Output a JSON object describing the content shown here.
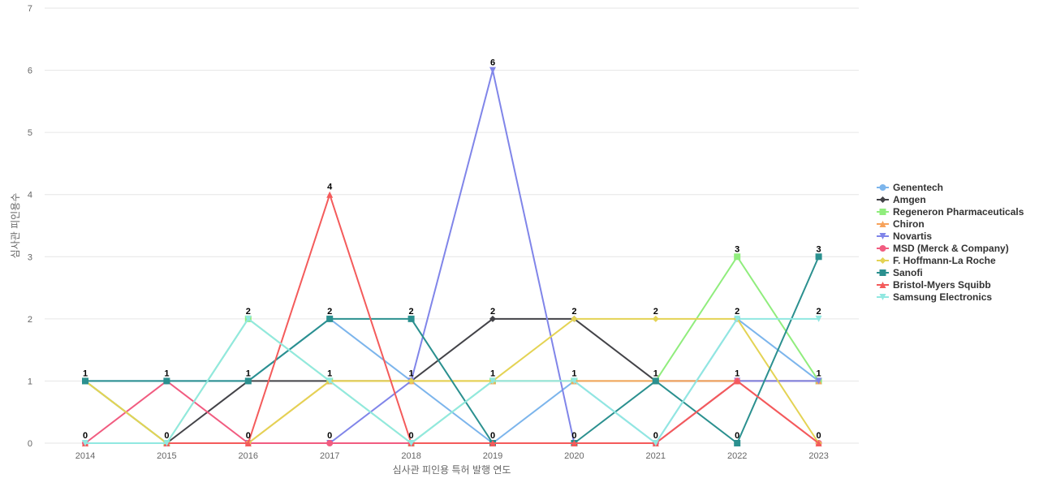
{
  "chart_data": {
    "type": "line",
    "title": "",
    "xlabel": "심사관 피인용 특허 발행 연도",
    "ylabel": "심사관 피인용수",
    "categories": [
      "2014",
      "2015",
      "2016",
      "2017",
      "2018",
      "2019",
      "2020",
      "2021",
      "2022",
      "2023"
    ],
    "y_ticks": [
      "0",
      "1",
      "2",
      "3",
      "4",
      "5",
      "6",
      "7"
    ],
    "ylim": [
      0,
      7
    ],
    "grid": true,
    "legend_position": "right",
    "series": [
      {
        "name": "Genentech",
        "color": "#7cb5ec",
        "marker": "circle",
        "values": [
          1,
          1,
          1,
          2,
          1,
          0,
          1,
          0,
          2,
          1
        ]
      },
      {
        "name": "Amgen",
        "color": "#434348",
        "marker": "diamond",
        "values": [
          1,
          0,
          1,
          1,
          1,
          2,
          2,
          1,
          1,
          1
        ]
      },
      {
        "name": "Regeneron Pharmaceuticals",
        "color": "#90ed7d",
        "marker": "square",
        "values": [
          1,
          0,
          2,
          1,
          0,
          1,
          1,
          1,
          3,
          1
        ]
      },
      {
        "name": "Chiron",
        "color": "#f7a35c",
        "marker": "triangle",
        "values": [
          0,
          0,
          0,
          1,
          1,
          1,
          1,
          1,
          1,
          1
        ]
      },
      {
        "name": "Novartis",
        "color": "#8085e9",
        "marker": "triangle-down",
        "values": [
          0,
          0,
          0,
          0,
          1,
          6,
          0,
          0,
          1,
          1
        ]
      },
      {
        "name": "MSD (Merck & Company)",
        "color": "#f15c80",
        "marker": "circle",
        "values": [
          0,
          1,
          0,
          0,
          0,
          0,
          0,
          0,
          1,
          0
        ]
      },
      {
        "name": "F. Hoffmann-La Roche",
        "color": "#e4d354",
        "marker": "diamond",
        "values": [
          1,
          0,
          0,
          1,
          1,
          1,
          2,
          2,
          2,
          0
        ]
      },
      {
        "name": "Sanofi",
        "color": "#2b908f",
        "marker": "square",
        "values": [
          1,
          1,
          1,
          2,
          2,
          0,
          0,
          1,
          0,
          3
        ]
      },
      {
        "name": "Bristol-Myers Squibb",
        "color": "#f45b5b",
        "marker": "triangle",
        "values": [
          0,
          0,
          0,
          4,
          0,
          0,
          0,
          0,
          1,
          0
        ]
      },
      {
        "name": "Samsung Electronics",
        "color": "#91e8e1",
        "marker": "triangle-down",
        "values": [
          0,
          0,
          2,
          1,
          0,
          1,
          1,
          0,
          2,
          2
        ]
      }
    ],
    "data_labels": [
      {
        "x": "2014",
        "values": [
          1,
          0
        ]
      },
      {
        "x": "2015",
        "values": [
          1,
          0
        ]
      },
      {
        "x": "2016",
        "values": [
          2,
          1,
          0
        ]
      },
      {
        "x": "2017",
        "values": [
          4,
          2,
          1,
          0
        ]
      },
      {
        "x": "2018",
        "values": [
          2,
          1,
          0
        ]
      },
      {
        "x": "2019",
        "values": [
          6,
          2,
          1,
          0
        ]
      },
      {
        "x": "2020",
        "values": [
          2,
          1,
          0
        ]
      },
      {
        "x": "2021",
        "values": [
          2,
          1,
          0
        ]
      },
      {
        "x": "2022",
        "values": [
          3,
          2,
          1,
          0
        ]
      },
      {
        "x": "2023",
        "values": [
          3,
          2,
          1,
          0
        ]
      }
    ]
  }
}
